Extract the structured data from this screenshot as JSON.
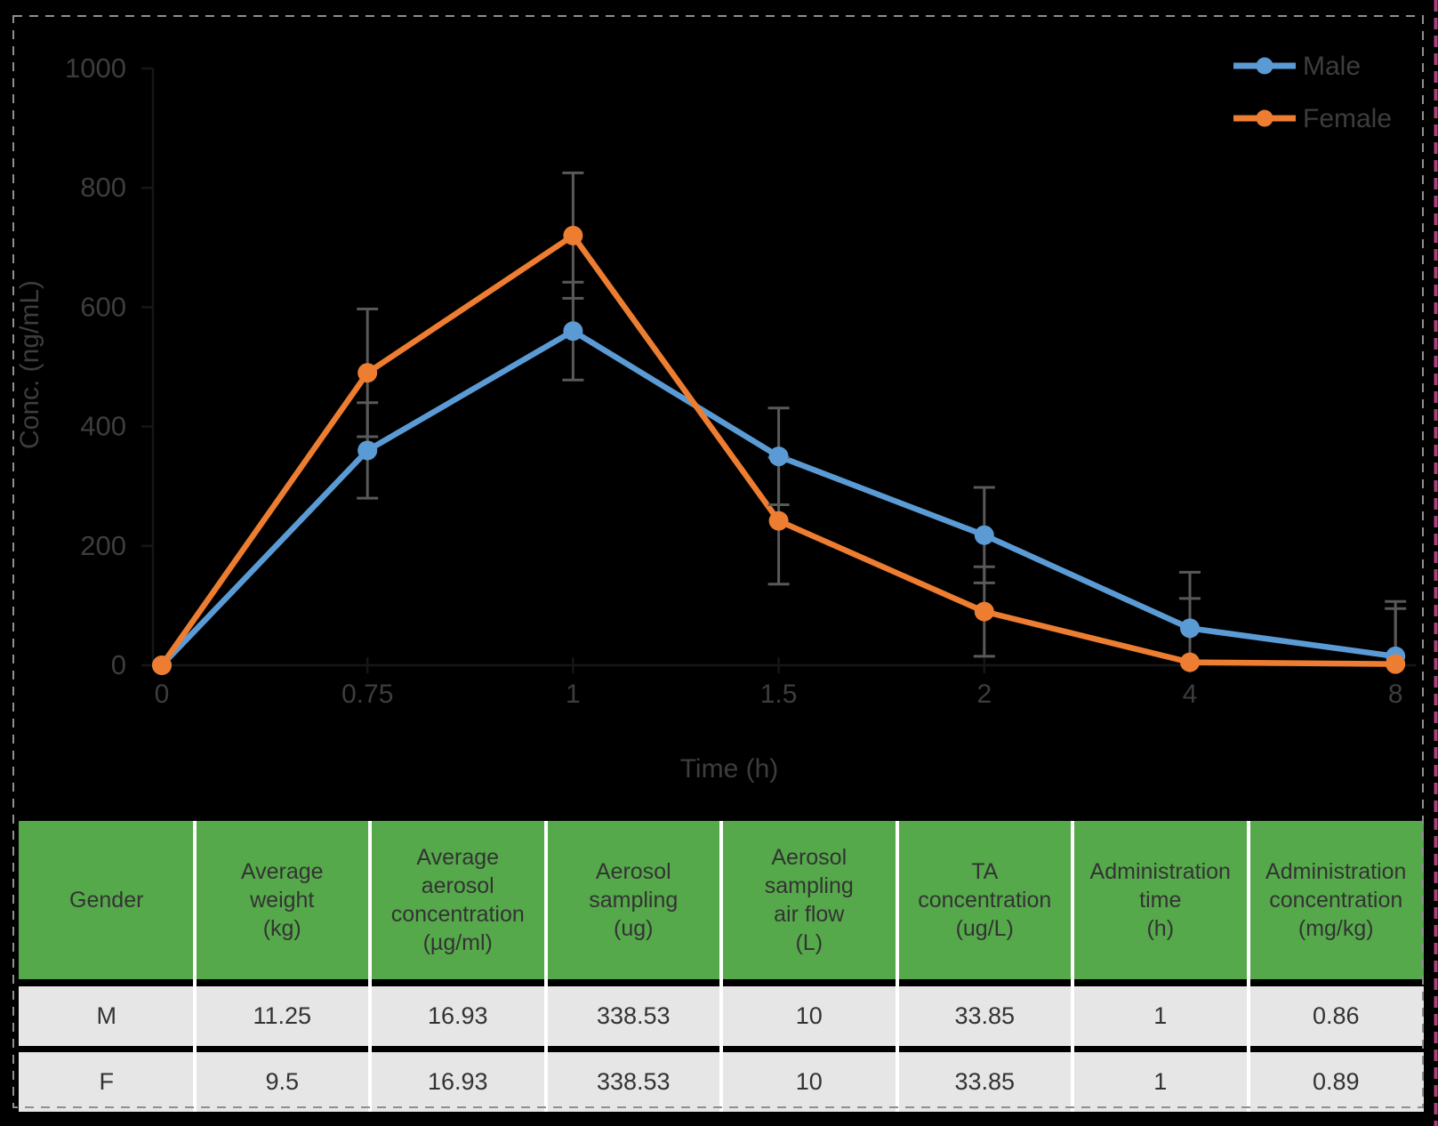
{
  "canvas": {
    "background": "#000000",
    "selection_border_color": "#8f8f8f",
    "edge_strip_color": "#a8407a"
  },
  "chart_data": {
    "type": "line",
    "title": "",
    "xlabel": "Time (h)",
    "ylabel": "Conc. (ng/mL)",
    "x_categories": [
      "0",
      "0.75",
      "1",
      "1.5",
      "2",
      "4",
      "8"
    ],
    "ylim": [
      0,
      1000
    ],
    "yticks": [
      0,
      200,
      400,
      600,
      800,
      1000
    ],
    "grid": false,
    "legend_position": "top-right",
    "error_bars": true,
    "series": [
      {
        "name": "Male",
        "color": "#5B9BD5",
        "values": [
          0,
          360,
          560,
          350,
          218,
          62,
          15
        ],
        "errors": [
          0,
          80,
          82,
          81,
          80,
          94,
          80
        ]
      },
      {
        "name": "Female",
        "color": "#ED7D31",
        "values": [
          0,
          490,
          720,
          242,
          90,
          5,
          2
        ],
        "errors": [
          0,
          107,
          105,
          106,
          75,
          107,
          105
        ]
      }
    ],
    "axis_color": "#161616",
    "label_color": "#3d3d3d",
    "error_bar_color": "#595959"
  },
  "table": {
    "header_bg": "#55A94A",
    "row_bg": "#E7E6E6",
    "text_color": "#333333",
    "separator_color": "#FFFFFF",
    "headers": [
      "Gender",
      "Average\nweight\n(kg)",
      "Average\naerosol\nconcentration\n(µg/ml)",
      "Aerosol\nsampling\n(ug)",
      "Aerosol\nsampling\nair flow\n(L)",
      "TA\nconcentration\n(ug/L)",
      "Administration\ntime\n(h)",
      "Administration\nconcentration\n(mg/kg)"
    ],
    "rows": [
      [
        "M",
        "11.25",
        "16.93",
        "338.53",
        "10",
        "33.85",
        "1",
        "0.86"
      ],
      [
        "F",
        "9.5",
        "16.93",
        "338.53",
        "10",
        "33.85",
        "1",
        "0.89"
      ]
    ]
  }
}
